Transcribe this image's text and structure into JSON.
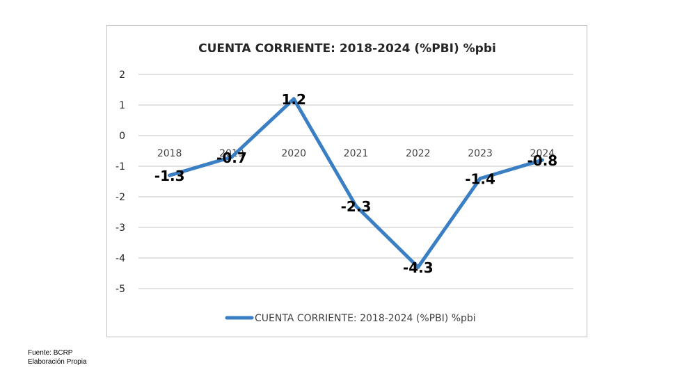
{
  "chart_data": {
    "type": "line",
    "title": "CUENTA CORRIENTE: 2018-2024 (%PBI) %pbi",
    "categories": [
      "2018",
      "2019",
      "2020",
      "2021",
      "2022",
      "2023",
      "2024"
    ],
    "series": [
      {
        "name": "CUENTA CORRIENTE: 2018-2024 (%PBI) %pbi",
        "values": [
          -1.3,
          -0.7,
          1.2,
          -2.3,
          -4.3,
          -1.4,
          -0.8
        ],
        "labels": [
          "-1.3",
          "-0.7",
          "1.2",
          "-2.3",
          "-4.3",
          "-1.4",
          "-0.8"
        ],
        "color": "#3a7fc4"
      }
    ],
    "yticks": [
      "2",
      "1",
      "0",
      "-1",
      "-2",
      "-3",
      "-4",
      "-5"
    ],
    "ylim": [
      -5,
      2
    ],
    "xlabel": "",
    "ylabel": "",
    "grid": true,
    "legend": "bottom",
    "gridline_color": "#d9d9d9"
  },
  "footer": {
    "source": "Fuente: BCRP",
    "credit": "Elaboración Propia"
  }
}
